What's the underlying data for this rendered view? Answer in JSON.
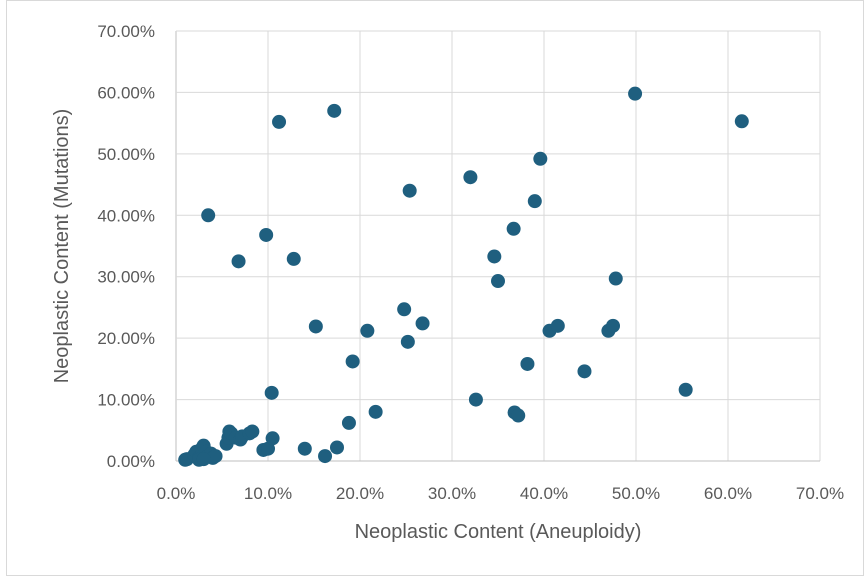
{
  "chart_data": {
    "type": "scatter",
    "title": "",
    "xlabel": "Neoplastic Content (Aneuploidy)",
    "ylabel": "Neoplastic Content (Mutations)",
    "xlim": [
      0,
      0.7
    ],
    "ylim": [
      0,
      0.7
    ],
    "x_ticks": [
      "0.0%",
      "10.0%",
      "20.0%",
      "30.0%",
      "40.0%",
      "50.0%",
      "60.0%",
      "70.0%"
    ],
    "y_ticks": [
      "0.00%",
      "10.00%",
      "20.00%",
      "30.00%",
      "40.00%",
      "50.00%",
      "60.00%",
      "70.00%"
    ],
    "grid": "on",
    "legend": "none",
    "marker_color": "#1f5f7f",
    "series": [
      {
        "points": [
          [
            0.01,
            0.002
          ],
          [
            0.012,
            0.003
          ],
          [
            0.02,
            0.01
          ],
          [
            0.022,
            0.015
          ],
          [
            0.025,
            0.005
          ],
          [
            0.028,
            0.02
          ],
          [
            0.03,
            0.025
          ],
          [
            0.033,
            0.015
          ],
          [
            0.035,
            0.008
          ],
          [
            0.038,
            0.012
          ],
          [
            0.04,
            0.005
          ],
          [
            0.043,
            0.008
          ],
          [
            0.025,
            0.002
          ],
          [
            0.03,
            0.003
          ],
          [
            0.055,
            0.028
          ],
          [
            0.057,
            0.038
          ],
          [
            0.058,
            0.048
          ],
          [
            0.06,
            0.045
          ],
          [
            0.065,
            0.038
          ],
          [
            0.07,
            0.035
          ],
          [
            0.072,
            0.04
          ],
          [
            0.08,
            0.045
          ],
          [
            0.083,
            0.048
          ],
          [
            0.095,
            0.018
          ],
          [
            0.1,
            0.02
          ],
          [
            0.105,
            0.037
          ],
          [
            0.035,
            0.4
          ],
          [
            0.068,
            0.325
          ],
          [
            0.098,
            0.368
          ],
          [
            0.104,
            0.111
          ],
          [
            0.112,
            0.552
          ],
          [
            0.128,
            0.329
          ],
          [
            0.14,
            0.02
          ],
          [
            0.152,
            0.219
          ],
          [
            0.162,
            0.008
          ],
          [
            0.172,
            0.57
          ],
          [
            0.175,
            0.022
          ],
          [
            0.188,
            0.062
          ],
          [
            0.192,
            0.162
          ],
          [
            0.208,
            0.212
          ],
          [
            0.217,
            0.08
          ],
          [
            0.248,
            0.247
          ],
          [
            0.252,
            0.194
          ],
          [
            0.254,
            0.44
          ],
          [
            0.268,
            0.224
          ],
          [
            0.32,
            0.462
          ],
          [
            0.326,
            0.1
          ],
          [
            0.346,
            0.333
          ],
          [
            0.35,
            0.293
          ],
          [
            0.367,
            0.378
          ],
          [
            0.368,
            0.079
          ],
          [
            0.372,
            0.074
          ],
          [
            0.382,
            0.158
          ],
          [
            0.39,
            0.423
          ],
          [
            0.396,
            0.492
          ],
          [
            0.406,
            0.212
          ],
          [
            0.415,
            0.22
          ],
          [
            0.444,
            0.146
          ],
          [
            0.47,
            0.212
          ],
          [
            0.475,
            0.22
          ],
          [
            0.478,
            0.297
          ],
          [
            0.499,
            0.598
          ],
          [
            0.554,
            0.116
          ],
          [
            0.615,
            0.553
          ]
        ]
      }
    ]
  }
}
